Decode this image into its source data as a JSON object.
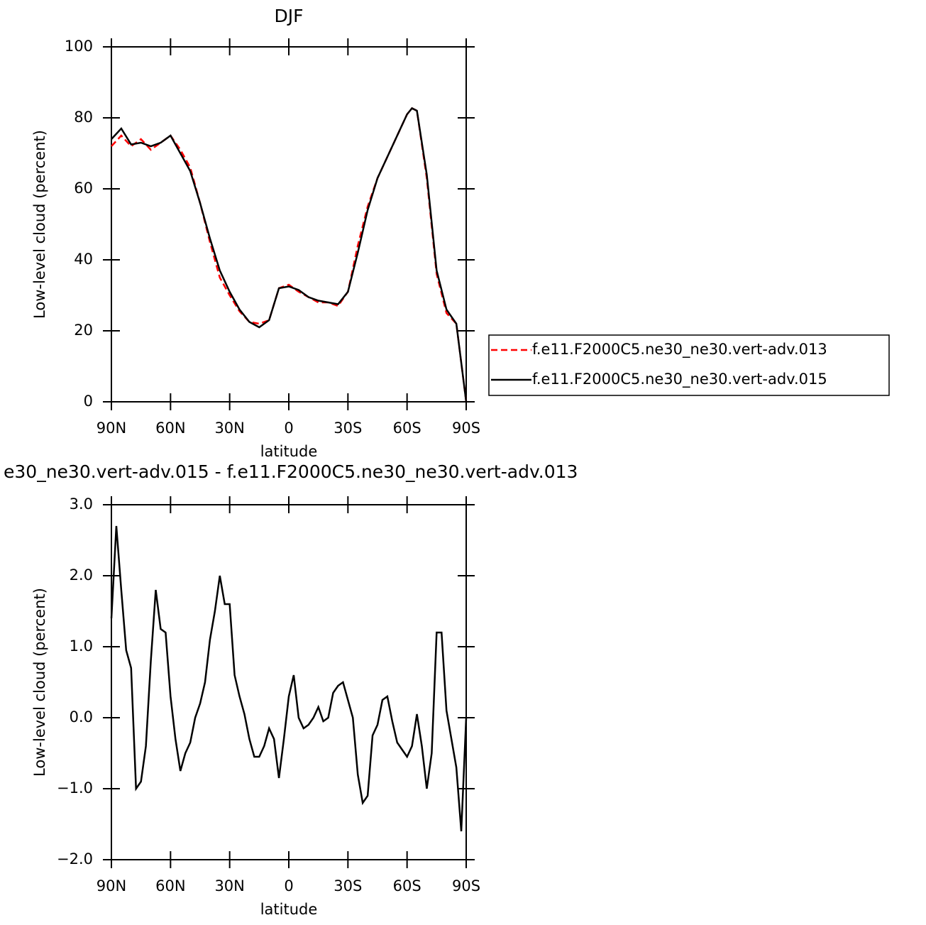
{
  "chart_data": [
    {
      "type": "line",
      "title": "DJF",
      "x_label": "latitude",
      "y_label": "Low-level cloud (percent)",
      "x": [
        90,
        85,
        80,
        75,
        70,
        65,
        60,
        55,
        50,
        45,
        40,
        35,
        30,
        25,
        20,
        15,
        10,
        5,
        0,
        -5,
        -10,
        -15,
        -20,
        -25,
        -30,
        -35,
        -40,
        -45,
        -50,
        -55,
        -60,
        -62.5,
        -65,
        -70,
        -75,
        -80,
        -85,
        -90
      ],
      "series": [
        {
          "name": "f.e11.F2000C5.ne30_ne30.vert-adv.013",
          "color": "#ff0000",
          "dash": "dashed",
          "values": [
            72,
            75,
            72,
            74,
            71,
            73,
            75,
            71,
            66,
            56,
            45,
            35,
            30,
            25.5,
            22.5,
            22,
            23,
            32,
            33,
            31,
            29.5,
            28,
            28,
            27,
            31,
            44,
            55,
            63,
            69,
            75,
            81,
            82.7,
            82,
            63,
            36,
            25,
            22,
            0
          ]
        },
        {
          "name": "f.e11.F2000C5.ne30_ne30.vert-adv.015",
          "color": "#000000",
          "dash": "solid",
          "values": [
            74,
            77,
            72.5,
            73,
            72,
            73,
            75,
            70,
            65,
            56,
            46,
            37,
            31,
            26,
            22.5,
            21,
            23,
            32,
            32.5,
            31.5,
            29.5,
            28.5,
            28,
            27.5,
            31,
            42,
            54,
            63,
            69,
            75,
            81,
            82.7,
            82,
            64,
            37,
            26,
            22,
            0
          ]
        }
      ],
      "xlim": [
        90,
        -90
      ],
      "xticks": [
        {
          "value": 90,
          "label": "90N"
        },
        {
          "value": 60,
          "label": "60N"
        },
        {
          "value": 30,
          "label": "30N"
        },
        0,
        {
          "value": -30,
          "label": "30S"
        },
        {
          "value": -60,
          "label": "60S"
        },
        {
          "value": -90,
          "label": "90S"
        }
      ],
      "ylim": [
        0,
        100
      ],
      "yticks": [
        0,
        20,
        40,
        60,
        80,
        100
      ],
      "legend": "right"
    },
    {
      "type": "line",
      "title": "e30_ne30.vert-adv.015 - f.e11.F2000C5.ne30_ne30.vert-adv.013",
      "x_label": "latitude",
      "y_label": "Low-level cloud (percent)",
      "x": [
        90,
        87.5,
        85,
        82.5,
        80,
        77.5,
        75,
        72.5,
        70,
        67.5,
        65,
        62.5,
        60,
        57.5,
        55,
        52.5,
        50,
        47.5,
        45,
        42.5,
        40,
        37.5,
        35,
        32.5,
        30,
        27.5,
        25,
        22.5,
        20,
        17.5,
        15,
        12.5,
        10,
        7.5,
        5,
        2.5,
        0,
        -2.5,
        -5,
        -7.5,
        -10,
        -12.5,
        -15,
        -17.5,
        -20,
        -22.5,
        -25,
        -27.5,
        -30,
        -32.5,
        -35,
        -37.5,
        -40,
        -42.5,
        -45,
        -47.5,
        -50,
        -52.5,
        -55,
        -57.5,
        -60,
        -62.5,
        -65,
        -67.5,
        -70,
        -72.5,
        -75,
        -77.5,
        -80,
        -82.5,
        -85,
        -87.5,
        -90
      ],
      "series": [
        {
          "color": "#000000",
          "dash": "solid",
          "values": [
            1.4,
            2.7,
            1.8,
            0.95,
            0.7,
            -1.0,
            -0.9,
            -0.4,
            0.8,
            1.8,
            1.25,
            1.2,
            0.3,
            -0.3,
            -0.75,
            -0.5,
            -0.35,
            0.0,
            0.2,
            0.5,
            1.1,
            1.5,
            2.0,
            1.6,
            1.6,
            0.6,
            0.3,
            0.05,
            -0.3,
            -0.55,
            -0.55,
            -0.4,
            -0.15,
            -0.3,
            -0.85,
            -0.3,
            0.3,
            0.6,
            0.0,
            -0.15,
            -0.1,
            0.0,
            0.15,
            -0.05,
            0.0,
            0.35,
            0.45,
            0.5,
            0.25,
            0.0,
            -0.8,
            -1.2,
            -1.1,
            -0.25,
            -0.1,
            0.25,
            0.3,
            -0.05,
            -0.35,
            -0.45,
            -0.55,
            -0.4,
            0.05,
            -0.4,
            -1.0,
            -0.5,
            1.2,
            1.2,
            0.1,
            -0.3,
            -0.7,
            -1.6,
            0.0
          ]
        }
      ],
      "xlim": [
        90,
        -90
      ],
      "xticks": [
        {
          "value": 90,
          "label": "90N"
        },
        {
          "value": 60,
          "label": "60N"
        },
        {
          "value": 30,
          "label": "30N"
        },
        0,
        {
          "value": -30,
          "label": "30S"
        },
        {
          "value": -60,
          "label": "60S"
        },
        {
          "value": -90,
          "label": "90S"
        }
      ],
      "ylim": [
        -2,
        3
      ],
      "yticks": [
        {
          "value": -2,
          "label": "−2.0"
        },
        {
          "value": -1,
          "label": "−1.0"
        },
        {
          "value": 0,
          "label": "0.0"
        },
        {
          "value": 1,
          "label": "1.0"
        },
        {
          "value": 2,
          "label": "2.0"
        },
        {
          "value": 3,
          "label": "3.0"
        }
      ]
    }
  ]
}
